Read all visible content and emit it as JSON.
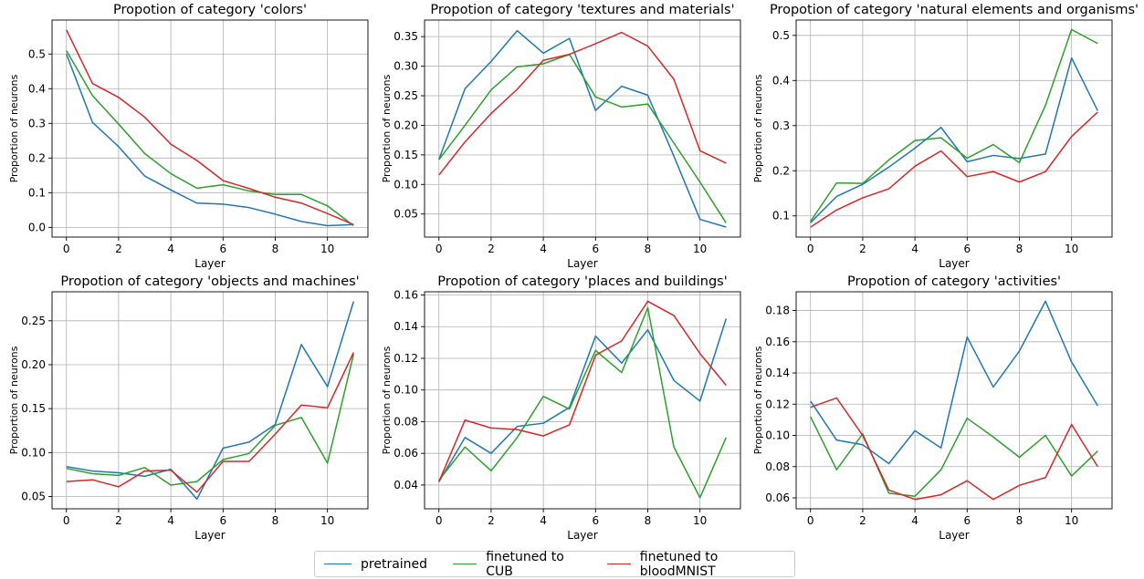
{
  "series_names": [
    "pretrained",
    "finetuned to CUB",
    "finetuned to bloodMNIST"
  ],
  "series_colors": [
    "#1f77b4",
    "#2ca02c",
    "#d62728"
  ],
  "chart_data": [
    {
      "type": "line",
      "title": "Propotion of category 'colors'",
      "xlabel": "Layer",
      "ylabel": "Proportion of neurons",
      "x": [
        0,
        1,
        2,
        3,
        4,
        5,
        6,
        7,
        8,
        9,
        10,
        11
      ],
      "xlim": [
        -0.55,
        11.55
      ],
      "ylim": [
        -0.028,
        0.598
      ],
      "xticks": [
        0,
        2,
        4,
        6,
        8,
        10
      ],
      "yticks": [
        0.0,
        0.1,
        0.2,
        0.3,
        0.4,
        0.5
      ],
      "ytick_labels": [
        "0.0",
        "0.1",
        "0.2",
        "0.3",
        "0.4",
        "0.5"
      ],
      "grid": true,
      "series": [
        {
          "name": "pretrained",
          "values": [
            0.5,
            0.303,
            0.233,
            0.148,
            0.108,
            0.07,
            0.067,
            0.057,
            0.038,
            0.017,
            0.005,
            0.008
          ]
        },
        {
          "name": "finetuned to CUB",
          "values": [
            0.51,
            0.38,
            0.298,
            0.213,
            0.155,
            0.113,
            0.123,
            0.105,
            0.095,
            0.095,
            0.062,
            0.005
          ]
        },
        {
          "name": "finetuned to bloodMNIST",
          "values": [
            0.57,
            0.415,
            0.375,
            0.318,
            0.24,
            0.193,
            0.135,
            0.112,
            0.087,
            0.07,
            0.04,
            0.008
          ]
        }
      ]
    },
    {
      "type": "line",
      "title": "Propotion of category 'textures and materials'",
      "xlabel": "Layer",
      "ylabel": "Proportion of neurons",
      "x": [
        0,
        1,
        2,
        3,
        4,
        5,
        6,
        7,
        8,
        9,
        10,
        11
      ],
      "xlim": [
        -0.55,
        11.55
      ],
      "ylim": [
        0.011,
        0.378
      ],
      "xticks": [
        0,
        2,
        4,
        6,
        8,
        10
      ],
      "yticks": [
        0.05,
        0.1,
        0.15,
        0.2,
        0.25,
        0.3,
        0.35
      ],
      "ytick_labels": [
        "0.05",
        "0.10",
        "0.15",
        "0.20",
        "0.25",
        "0.30",
        "0.35"
      ],
      "grid": true,
      "series": [
        {
          "name": "pretrained",
          "values": [
            0.142,
            0.262,
            0.308,
            0.36,
            0.322,
            0.347,
            0.225,
            0.266,
            0.251,
            0.148,
            0.041,
            0.028
          ]
        },
        {
          "name": "finetuned to CUB",
          "values": [
            0.142,
            0.2,
            0.26,
            0.299,
            0.304,
            0.32,
            0.248,
            0.231,
            0.236,
            0.17,
            0.104,
            0.035
          ]
        },
        {
          "name": "finetuned to bloodMNIST",
          "values": [
            0.116,
            0.172,
            0.22,
            0.261,
            0.31,
            0.32,
            0.338,
            0.357,
            0.334,
            0.278,
            0.157,
            0.136
          ]
        }
      ]
    },
    {
      "type": "line",
      "title": "Propotion of category 'natural elements and organisms'",
      "xlabel": "Layer",
      "ylabel": "Proportion of neurons",
      "x": [
        0,
        1,
        2,
        3,
        4,
        5,
        6,
        7,
        8,
        9,
        10,
        11
      ],
      "xlim": [
        -0.55,
        11.55
      ],
      "ylim": [
        0.053,
        0.534
      ],
      "xticks": [
        0,
        2,
        4,
        6,
        8,
        10
      ],
      "yticks": [
        0.1,
        0.2,
        0.3,
        0.4,
        0.5
      ],
      "ytick_labels": [
        "0.1",
        "0.2",
        "0.3",
        "0.4",
        "0.5"
      ],
      "grid": true,
      "series": [
        {
          "name": "pretrained",
          "values": [
            0.085,
            0.143,
            0.17,
            0.208,
            0.25,
            0.296,
            0.22,
            0.234,
            0.227,
            0.237,
            0.45,
            0.333
          ]
        },
        {
          "name": "finetuned to CUB",
          "values": [
            0.088,
            0.173,
            0.172,
            0.224,
            0.267,
            0.273,
            0.228,
            0.258,
            0.218,
            0.345,
            0.513,
            0.482
          ]
        },
        {
          "name": "finetuned to bloodMNIST",
          "values": [
            0.075,
            0.113,
            0.14,
            0.16,
            0.21,
            0.244,
            0.187,
            0.198,
            0.175,
            0.198,
            0.276,
            0.33
          ]
        }
      ]
    },
    {
      "type": "line",
      "title": "Propotion of category 'objects and machines'",
      "xlabel": "Layer",
      "ylabel": "Proportion of neurons",
      "x": [
        0,
        1,
        2,
        3,
        4,
        5,
        6,
        7,
        8,
        9,
        10,
        11
      ],
      "xlim": [
        -0.55,
        11.55
      ],
      "ylim": [
        0.036,
        0.283
      ],
      "xticks": [
        0,
        2,
        4,
        6,
        8,
        10
      ],
      "yticks": [
        0.05,
        0.1,
        0.15,
        0.2,
        0.25
      ],
      "ytick_labels": [
        "0.05",
        "0.10",
        "0.15",
        "0.20",
        "0.25"
      ],
      "grid": true,
      "series": [
        {
          "name": "pretrained",
          "values": [
            0.084,
            0.079,
            0.077,
            0.073,
            0.081,
            0.047,
            0.105,
            0.112,
            0.132,
            0.223,
            0.175,
            0.272
          ]
        },
        {
          "name": "finetuned to CUB",
          "values": [
            0.082,
            0.076,
            0.074,
            0.083,
            0.063,
            0.067,
            0.092,
            0.099,
            0.131,
            0.14,
            0.088,
            0.212
          ]
        },
        {
          "name": "finetuned to bloodMNIST",
          "values": [
            0.067,
            0.069,
            0.061,
            0.079,
            0.08,
            0.055,
            0.09,
            0.09,
            0.121,
            0.154,
            0.151,
            0.214
          ]
        }
      ]
    },
    {
      "type": "line",
      "title": "Propotion of category 'places and buildings'",
      "xlabel": "Layer",
      "ylabel": "Proportion of neurons",
      "x": [
        0,
        1,
        2,
        3,
        4,
        5,
        6,
        7,
        8,
        9,
        10,
        11
      ],
      "xlim": [
        -0.55,
        11.55
      ],
      "ylim": [
        0.025,
        0.162
      ],
      "xticks": [
        0,
        2,
        4,
        6,
        8,
        10
      ],
      "yticks": [
        0.04,
        0.06,
        0.08,
        0.1,
        0.12,
        0.14,
        0.16
      ],
      "ytick_labels": [
        "0.04",
        "0.06",
        "0.08",
        "0.10",
        "0.12",
        "0.14",
        "0.16"
      ],
      "grid": true,
      "series": [
        {
          "name": "pretrained",
          "values": [
            0.042,
            0.07,
            0.06,
            0.077,
            0.079,
            0.089,
            0.134,
            0.117,
            0.138,
            0.106,
            0.093,
            0.145
          ]
        },
        {
          "name": "finetuned to CUB",
          "values": [
            0.043,
            0.064,
            0.049,
            0.07,
            0.096,
            0.088,
            0.125,
            0.111,
            0.152,
            0.064,
            0.032,
            0.07
          ]
        },
        {
          "name": "finetuned to bloodMNIST",
          "values": [
            0.042,
            0.081,
            0.076,
            0.075,
            0.071,
            0.078,
            0.122,
            0.131,
            0.156,
            0.147,
            0.123,
            0.103
          ]
        }
      ]
    },
    {
      "type": "line",
      "title": "Propotion of category 'activities'",
      "xlabel": "Layer",
      "ylabel": "Proportion of neurons",
      "x": [
        0,
        1,
        2,
        3,
        4,
        5,
        6,
        7,
        8,
        9,
        10,
        11
      ],
      "xlim": [
        -0.55,
        11.55
      ],
      "ylim": [
        0.053,
        0.192
      ],
      "xticks": [
        0,
        2,
        4,
        6,
        8,
        10
      ],
      "yticks": [
        0.06,
        0.08,
        0.1,
        0.12,
        0.14,
        0.16,
        0.18
      ],
      "ytick_labels": [
        "0.06",
        "0.08",
        "0.10",
        "0.12",
        "0.14",
        "0.16",
        "0.18"
      ],
      "grid": true,
      "series": [
        {
          "name": "pretrained",
          "values": [
            0.122,
            0.097,
            0.094,
            0.082,
            0.103,
            0.092,
            0.163,
            0.131,
            0.154,
            0.186,
            0.147,
            0.119
          ]
        },
        {
          "name": "finetuned to CUB",
          "values": [
            0.112,
            0.078,
            0.101,
            0.063,
            0.061,
            0.078,
            0.111,
            0.099,
            0.086,
            0.1,
            0.074,
            0.09
          ]
        },
        {
          "name": "finetuned to bloodMNIST",
          "values": [
            0.118,
            0.124,
            0.1,
            0.065,
            0.059,
            0.062,
            0.071,
            0.059,
            0.068,
            0.073,
            0.107,
            0.08
          ]
        }
      ]
    }
  ]
}
